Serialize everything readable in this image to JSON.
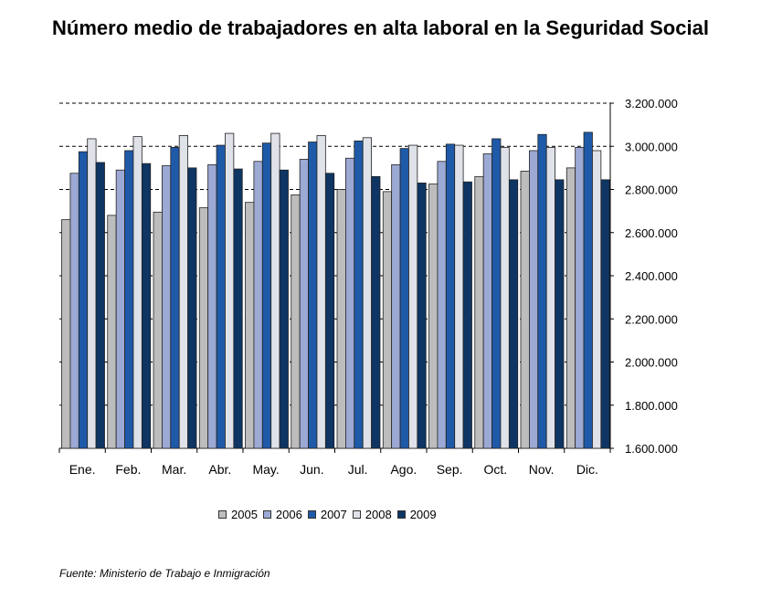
{
  "title": "Número medio de trabajadores en alta laboral en la Seguridad Social",
  "source": "Fuente: Ministerio de Trabajo e Inmigración",
  "colors": {
    "2005": "#bdbdbd",
    "2006": "#9ca9d4",
    "2007": "#1f5aa8",
    "2008": "#dfe2e8",
    "2009": "#0e3563"
  },
  "chart_data": {
    "type": "bar",
    "title": "Número medio de trabajadores en alta laboral en la Seguridad Social",
    "xlabel": "",
    "ylabel": "",
    "categories": [
      "Ene.",
      "Feb.",
      "Mar.",
      "Abr.",
      "May.",
      "Jun.",
      "Jul.",
      "Ago.",
      "Sep.",
      "Oct.",
      "Nov.",
      "Dic."
    ],
    "ylim": [
      1600000,
      3200000
    ],
    "y_ticks": [
      "1.600.000",
      "1.800.000",
      "2.000.000",
      "2.200.000",
      "2.400.000",
      "2.600.000",
      "2.800.000",
      "3.000.000",
      "3.200.000"
    ],
    "y_tick_values": [
      1600000,
      1800000,
      2000000,
      2200000,
      2400000,
      2600000,
      2800000,
      3000000,
      3200000
    ],
    "grid": "horizontal dashed",
    "legend_position": "bottom",
    "series": [
      {
        "name": "2005",
        "values": [
          2660000,
          2680000,
          2695000,
          2715000,
          2740000,
          2775000,
          2800000,
          2790000,
          2825000,
          2860000,
          2885000,
          2900000
        ]
      },
      {
        "name": "2006",
        "values": [
          2875000,
          2890000,
          2910000,
          2915000,
          2930000,
          2940000,
          2945000,
          2915000,
          2930000,
          2965000,
          2980000,
          2995000
        ]
      },
      {
        "name": "2007",
        "values": [
          2975000,
          2980000,
          2995000,
          3005000,
          3015000,
          3020000,
          3025000,
          2990000,
          3010000,
          3035000,
          3055000,
          3065000
        ]
      },
      {
        "name": "2008",
        "values": [
          3035000,
          3045000,
          3050000,
          3060000,
          3060000,
          3050000,
          3040000,
          3005000,
          3005000,
          2995000,
          2995000,
          2980000
        ]
      },
      {
        "name": "2009",
        "values": [
          2925000,
          2920000,
          2900000,
          2895000,
          2890000,
          2875000,
          2860000,
          2830000,
          2835000,
          2845000,
          2845000,
          2845000
        ]
      }
    ]
  }
}
